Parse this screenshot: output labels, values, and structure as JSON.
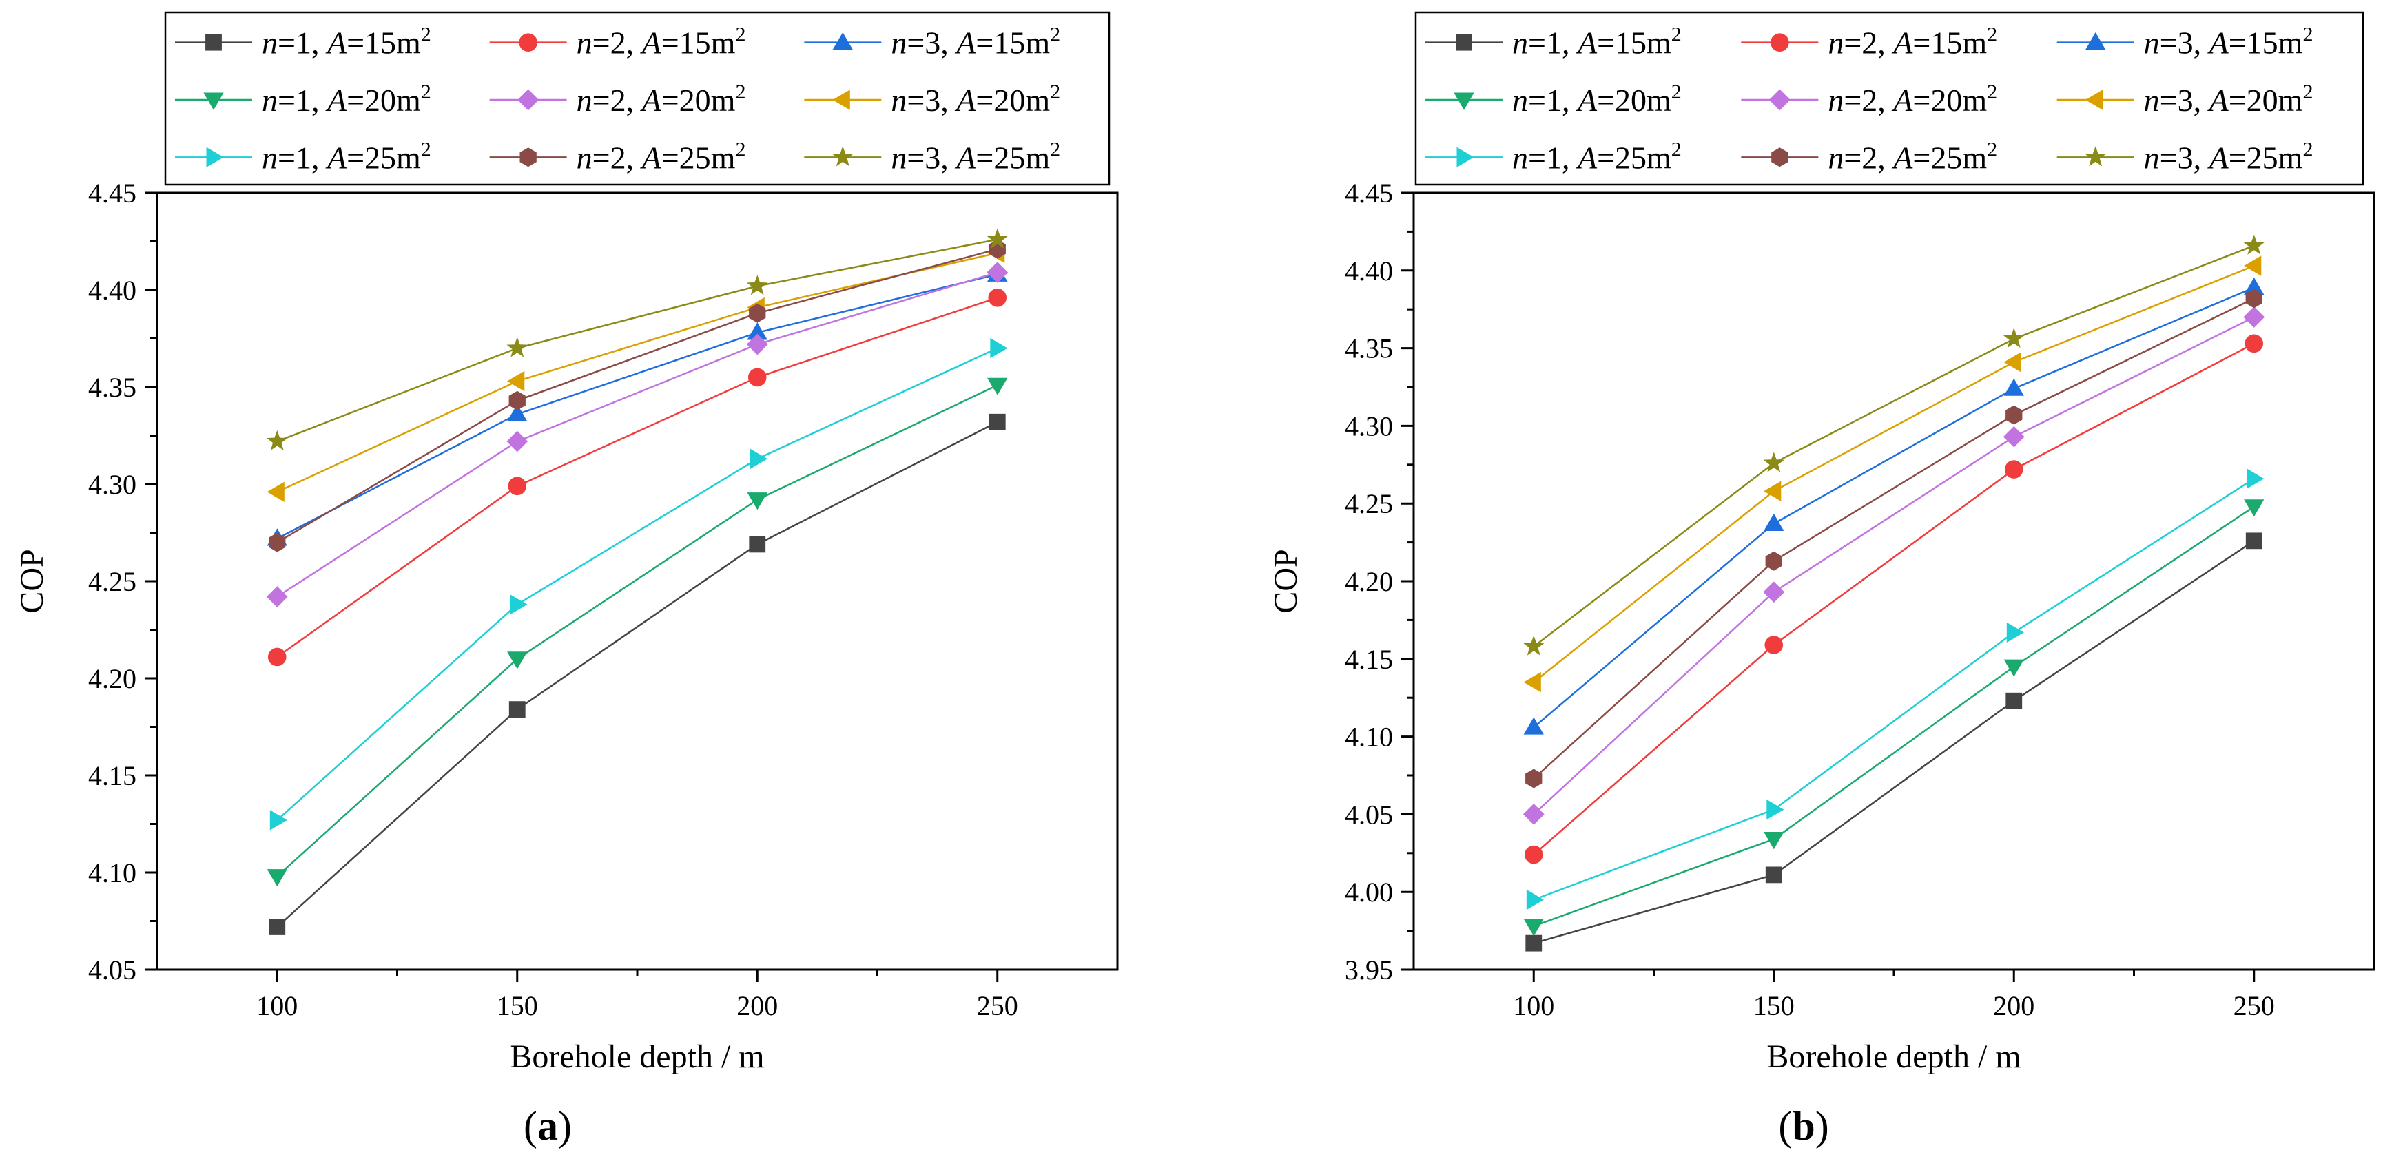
{
  "chart_data": [
    {
      "type": "line",
      "panel_label": "a",
      "xlabel": "Borehole depth / m",
      "ylabel": "COP",
      "x": [
        100,
        150,
        200,
        250
      ],
      "xlim": [
        75,
        275
      ],
      "ylim": [
        4.05,
        4.45
      ],
      "xticks": [
        100,
        150,
        200,
        250
      ],
      "yticks": [
        4.05,
        4.1,
        4.15,
        4.2,
        4.25,
        4.3,
        4.35,
        4.4,
        4.45
      ],
      "grid": false,
      "legend_position": "top, 3 columns",
      "series": [
        {
          "name": "n=1, A=15m2",
          "n": "1",
          "A": "15",
          "values": [
            4.072,
            4.184,
            4.269,
            4.332
          ],
          "color": "#444444",
          "marker": "square"
        },
        {
          "name": "n=2, A=15m2",
          "n": "2",
          "A": "15",
          "values": [
            4.211,
            4.299,
            4.355,
            4.396
          ],
          "color": "#f03c3c",
          "marker": "circle"
        },
        {
          "name": "n=3, A=15m2",
          "n": "3",
          "A": "15",
          "values": [
            4.272,
            4.336,
            4.378,
            4.408
          ],
          "color": "#1e6fdc",
          "marker": "triangle-up"
        },
        {
          "name": "n=1, A=20m2",
          "n": "1",
          "A": "20",
          "values": [
            4.098,
            4.21,
            4.292,
            4.351
          ],
          "color": "#1aaa6e",
          "marker": "triangle-down"
        },
        {
          "name": "n=2, A=20m2",
          "n": "2",
          "A": "20",
          "values": [
            4.242,
            4.322,
            4.372,
            4.409
          ],
          "color": "#c173e0",
          "marker": "diamond"
        },
        {
          "name": "n=3, A=20m2",
          "n": "3",
          "A": "20",
          "values": [
            4.296,
            4.353,
            4.391,
            4.419
          ],
          "color": "#d9a000",
          "marker": "triangle-left"
        },
        {
          "name": "n=1, A=25m2",
          "n": "1",
          "A": "25",
          "values": [
            4.127,
            4.238,
            4.313,
            4.37
          ],
          "color": "#1ecfd6",
          "marker": "triangle-right"
        },
        {
          "name": "n=2, A=25m2",
          "n": "2",
          "A": "25",
          "values": [
            4.27,
            4.343,
            4.388,
            4.421
          ],
          "color": "#8a4a45",
          "marker": "hexagon"
        },
        {
          "name": "n=3, A=25m2",
          "n": "3",
          "A": "25",
          "values": [
            4.322,
            4.37,
            4.402,
            4.426
          ],
          "color": "#8a8a16",
          "marker": "star"
        }
      ]
    },
    {
      "type": "line",
      "panel_label": "b",
      "xlabel": "Borehole depth / m",
      "ylabel": "COP",
      "x": [
        100,
        150,
        200,
        250
      ],
      "xlim": [
        75,
        275
      ],
      "ylim": [
        3.95,
        4.45
      ],
      "xticks": [
        100,
        150,
        200,
        250
      ],
      "yticks": [
        3.95,
        4.0,
        4.05,
        4.1,
        4.15,
        4.2,
        4.25,
        4.3,
        4.35,
        4.4,
        4.45
      ],
      "grid": false,
      "legend_position": "top, 3 columns",
      "series": [
        {
          "name": "n=1, A=15m2",
          "n": "1",
          "A": "15",
          "values": [
            3.967,
            4.011,
            4.123,
            4.226
          ],
          "color": "#444444",
          "marker": "square"
        },
        {
          "name": "n=2, A=15m2",
          "n": "2",
          "A": "15",
          "values": [
            4.024,
            4.159,
            4.272,
            4.353
          ],
          "color": "#f03c3c",
          "marker": "circle"
        },
        {
          "name": "n=3, A=15m2",
          "n": "3",
          "A": "15",
          "values": [
            4.106,
            4.237,
            4.324,
            4.389
          ],
          "color": "#1e6fdc",
          "marker": "triangle-up"
        },
        {
          "name": "n=1, A=20m2",
          "n": "1",
          "A": "20",
          "values": [
            3.978,
            4.034,
            4.145,
            4.248
          ],
          "color": "#1aaa6e",
          "marker": "triangle-down"
        },
        {
          "name": "n=2, A=20m2",
          "n": "2",
          "A": "20",
          "values": [
            4.05,
            4.193,
            4.293,
            4.37
          ],
          "color": "#c173e0",
          "marker": "diamond"
        },
        {
          "name": "n=3, A=20m2",
          "n": "3",
          "A": "20",
          "values": [
            4.135,
            4.258,
            4.341,
            4.403
          ],
          "color": "#d9a000",
          "marker": "triangle-left"
        },
        {
          "name": "n=1, A=25m2",
          "n": "1",
          "A": "25",
          "values": [
            3.995,
            4.053,
            4.167,
            4.266
          ],
          "color": "#1ecfd6",
          "marker": "triangle-right"
        },
        {
          "name": "n=2, A=25m2",
          "n": "2",
          "A": "25",
          "values": [
            4.073,
            4.213,
            4.307,
            4.382
          ],
          "color": "#8a4a45",
          "marker": "hexagon"
        },
        {
          "name": "n=3, A=25m2",
          "n": "3",
          "A": "25",
          "values": [
            4.158,
            4.276,
            4.356,
            4.416
          ],
          "color": "#8a8a16",
          "marker": "star"
        }
      ]
    }
  ]
}
